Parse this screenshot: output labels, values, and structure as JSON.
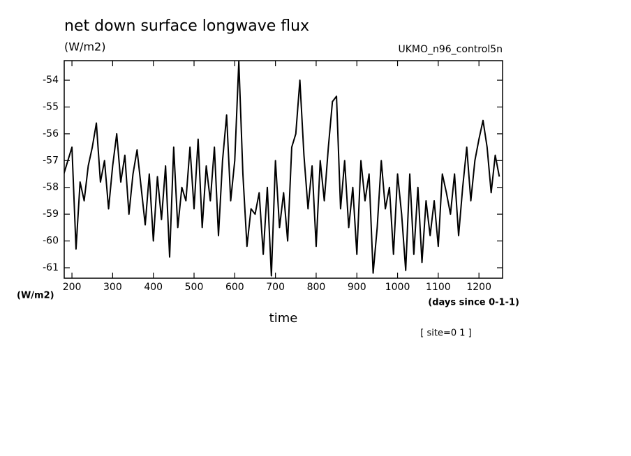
{
  "chart_data": {
    "type": "line",
    "title": "net down surface longwave flux",
    "units_top": "(W/m2)",
    "dataset": "UKMO_n96_control5n",
    "units_left": "(W/m2)",
    "x_units": "(days since 0-1-1)",
    "xlabel": "time",
    "annotation": "[ site=0 1 ]",
    "color": "#000000",
    "xlim": [
      181,
      1258
    ],
    "ylim": [
      -61.39,
      -53.27
    ],
    "xticks": [
      200,
      300,
      400,
      500,
      600,
      700,
      800,
      900,
      1000,
      1100,
      1200
    ],
    "yticks": [
      -54,
      -55,
      -56,
      -57,
      -58,
      -59,
      -60,
      -61
    ],
    "x": [
      180,
      190,
      200,
      210,
      220,
      230,
      240,
      250,
      260,
      270,
      280,
      290,
      300,
      310,
      320,
      330,
      340,
      350,
      360,
      370,
      380,
      390,
      400,
      410,
      420,
      430,
      440,
      450,
      460,
      470,
      480,
      490,
      500,
      510,
      520,
      530,
      540,
      550,
      560,
      570,
      580,
      590,
      600,
      610,
      620,
      630,
      640,
      650,
      660,
      670,
      680,
      690,
      700,
      710,
      720,
      730,
      740,
      750,
      760,
      770,
      780,
      790,
      800,
      810,
      820,
      830,
      840,
      850,
      860,
      870,
      880,
      890,
      900,
      910,
      920,
      930,
      940,
      950,
      960,
      970,
      980,
      990,
      1000,
      1010,
      1020,
      1030,
      1040,
      1050,
      1060,
      1070,
      1080,
      1090,
      1100,
      1110,
      1120,
      1130,
      1140,
      1150,
      1160,
      1170,
      1180,
      1190,
      1200,
      1210,
      1220,
      1230,
      1240,
      1250
    ],
    "values": [
      -57.5,
      -57.0,
      -56.5,
      -60.3,
      -57.8,
      -58.5,
      -57.2,
      -56.5,
      -55.6,
      -57.8,
      -57.0,
      -58.8,
      -57.2,
      -56.0,
      -57.8,
      -56.8,
      -59.0,
      -57.5,
      -56.6,
      -58.0,
      -59.4,
      -57.5,
      -60.0,
      -57.6,
      -59.2,
      -57.2,
      -60.6,
      -56.5,
      -59.5,
      -58.0,
      -58.5,
      -56.5,
      -58.8,
      -56.2,
      -59.5,
      -57.2,
      -58.5,
      -56.5,
      -59.8,
      -57.0,
      -55.3,
      -58.5,
      -57.0,
      -53.3,
      -57.5,
      -60.2,
      -58.8,
      -59.0,
      -58.2,
      -60.5,
      -58.0,
      -61.3,
      -57.0,
      -59.5,
      -58.2,
      -60.0,
      -56.5,
      -56.0,
      -54.0,
      -56.8,
      -58.8,
      -57.2,
      -60.2,
      -57.0,
      -58.5,
      -56.5,
      -54.8,
      -54.6,
      -58.8,
      -57.0,
      -59.5,
      -58.0,
      -60.5,
      -57.0,
      -58.5,
      -57.5,
      -61.2,
      -59.5,
      -57.0,
      -58.8,
      -58.0,
      -60.5,
      -57.5,
      -59.0,
      -61.1,
      -57.5,
      -60.5,
      -58.0,
      -60.8,
      -58.5,
      -59.8,
      -58.5,
      -60.2,
      -57.5,
      -58.2,
      -59.0,
      -57.5,
      -59.8,
      -58.0,
      -56.5,
      -58.5,
      -57.0,
      -56.2,
      -55.5,
      -56.5,
      -58.2,
      -56.8,
      -57.6
    ]
  }
}
